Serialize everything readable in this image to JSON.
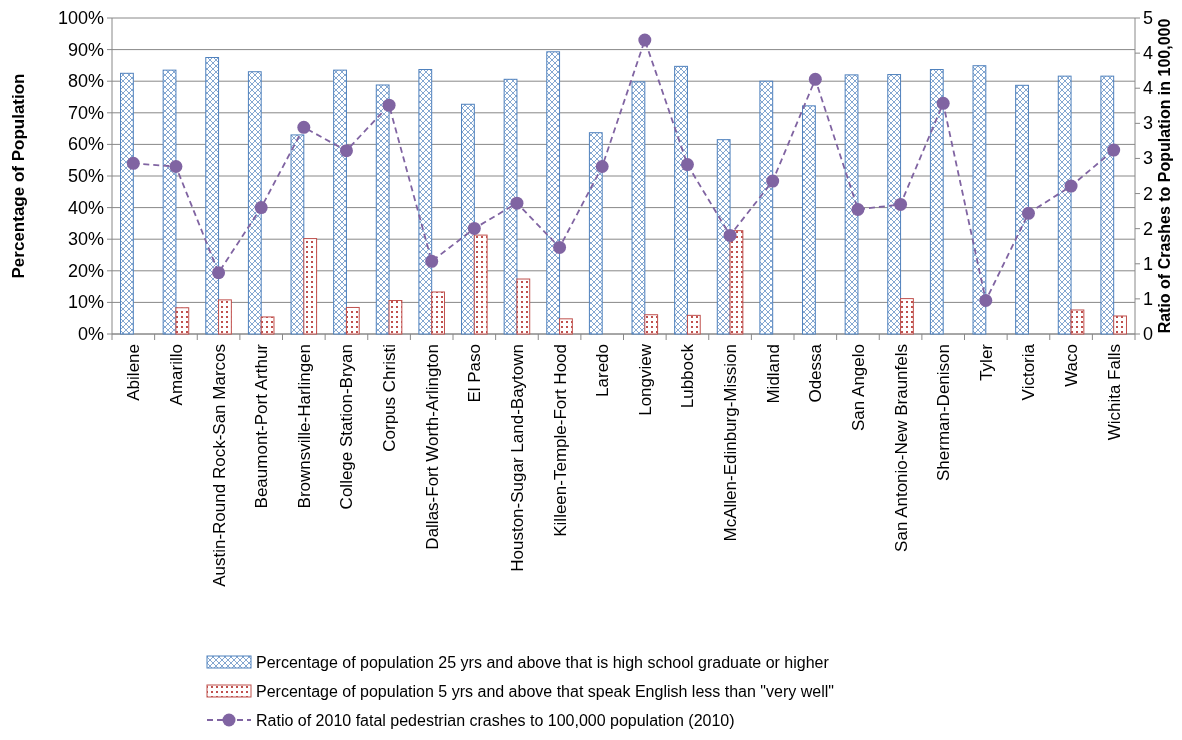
{
  "chart_data": {
    "type": "bar",
    "ylabel": "Percentage of Population",
    "y2label": "Ratio of Crashes to Population in 100,000",
    "categories": [
      "Abilene",
      "Amarillo",
      "Austin-Round Rock-San Marcos",
      "Beaumont-Port Arthur",
      "Brownsville-Harlingen",
      "College Station-Bryan",
      "Corpus Christi",
      "Dallas-Fort Worth-Arlington",
      "El Paso",
      "Houston-Sugar Land-Baytown",
      "Killeen-Temple-Fort Hood",
      "Laredo",
      "Longview",
      "Lubbock",
      "McAllen-Edinburg-Mission",
      "Midland",
      "Odessa",
      "San Angelo",
      "San Antonio-New Braunfels",
      "Sherman-Denison",
      "Tyler",
      "Victoria",
      "Waco",
      "Wichita Falls"
    ],
    "series": [
      {
        "name": "Percentage of population 25 yrs and above that is high school graduate or higher",
        "color": "#4f81bd",
        "values": [
          82.5,
          83.5,
          87.5,
          83,
          63,
          83.5,
          78.8,
          83.7,
          72.7,
          80.6,
          89.3,
          63.7,
          79.8,
          84.7,
          61.5,
          80,
          72.2,
          82,
          82.1,
          83.7,
          84.9,
          78.7,
          81.6,
          81.6
        ]
      },
      {
        "name": "Percentage of population 5 yrs and above that speak English less than \"very well\"",
        "color": "#c0504d",
        "values": [
          null,
          8.3,
          10.8,
          5.4,
          30.2,
          8.4,
          10.6,
          13.3,
          31.3,
          17.4,
          4.8,
          null,
          6.1,
          5.9,
          32.7,
          null,
          null,
          null,
          11.2,
          null,
          null,
          null,
          7.6,
          5.7
        ]
      },
      {
        "name": "Ratio of 2010 fatal pedestrian crashes to 100,000 population (2010)",
        "type": "line",
        "axis": "y2",
        "color": "#8064a2",
        "marker": "circle",
        "line_style": "dashed",
        "values": [
          2.7,
          2.65,
          0.97,
          2.0,
          3.27,
          2.9,
          3.62,
          1.15,
          1.67,
          2.07,
          1.37,
          2.65,
          4.65,
          2.68,
          1.56,
          2.42,
          4.03,
          1.97,
          2.05,
          3.65,
          0.53,
          1.91,
          2.34,
          2.91
        ]
      }
    ],
    "ylim": [
      0,
      100
    ],
    "yticks": [
      {
        "value": 0,
        "label": "0%"
      },
      {
        "value": 10,
        "label": "10%"
      },
      {
        "value": 20,
        "label": "20%"
      },
      {
        "value": 30,
        "label": "30%"
      },
      {
        "value": 40,
        "label": "40%"
      },
      {
        "value": 50,
        "label": "50%"
      },
      {
        "value": 60,
        "label": "60%"
      },
      {
        "value": 70,
        "label": "70%"
      },
      {
        "value": 80,
        "label": "80%"
      },
      {
        "value": 90,
        "label": "90%"
      },
      {
        "value": 100,
        "label": "100%"
      }
    ],
    "y2lim": [
      0,
      5
    ],
    "y2ticks": [
      0,
      {
        "value": 0.556,
        "label": "1"
      },
      {
        "value": 1.111,
        "label": "1"
      },
      {
        "value": 1.667,
        "label": "2"
      },
      {
        "value": 2.222,
        "label": "2"
      },
      {
        "value": 2.778,
        "label": "3"
      },
      {
        "value": 3.333,
        "label": "3"
      },
      {
        "value": 3.889,
        "label": "4"
      },
      {
        "value": 4.444,
        "label": "4"
      },
      5
    ],
    "grid": "y",
    "legend": "bottom"
  }
}
